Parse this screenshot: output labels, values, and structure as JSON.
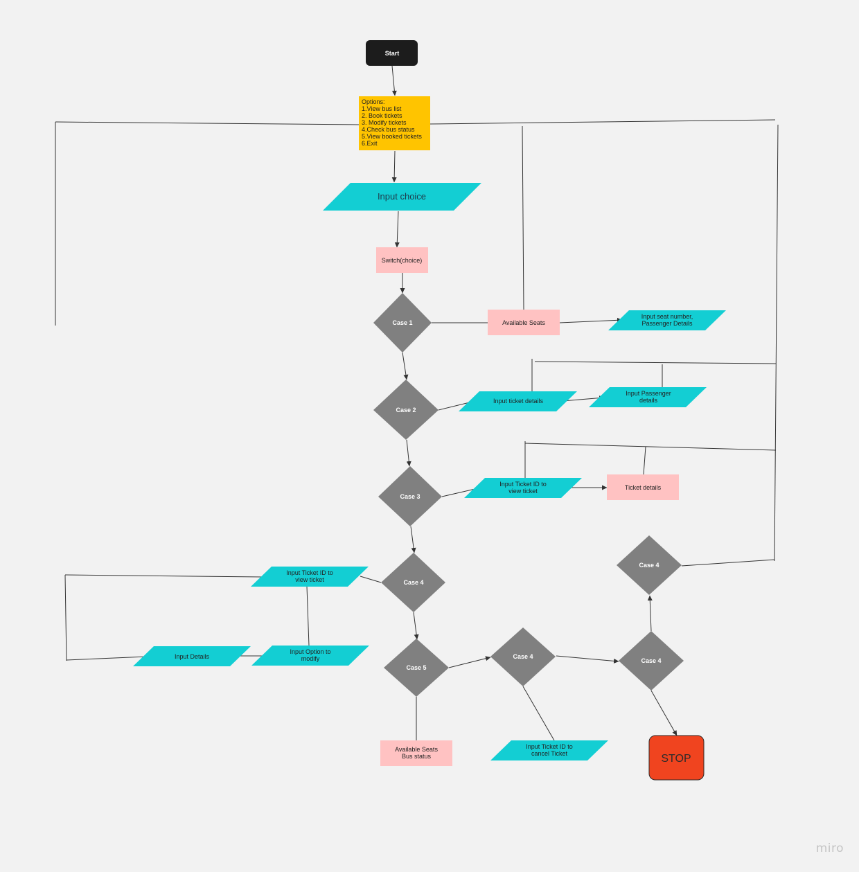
{
  "colors": {
    "background": "#f2f2f2",
    "terminal_start": "#1c1c1c",
    "options": "#ffc400",
    "io": "#13ced3",
    "process": "#ffc2c2",
    "decision": "#808080",
    "stop": "#f0441f"
  },
  "nodes": {
    "start": "Start",
    "options": [
      "Options:",
      "1.View bus list",
      "2. Book tickets",
      "3. Modify tickets",
      "4.Check bus status",
      "5.View booked tickets",
      "6.Exit"
    ],
    "input_choice": "Input choice",
    "switch": "Switch(choice)",
    "case1": "Case 1",
    "available_seats": "Available Seats",
    "input_seat": [
      "Input seat  number,",
      "Passenger Details"
    ],
    "case2": "Case 2",
    "input_ticket_details": "Input ticket details",
    "input_passenger": [
      "Input Passenger",
      "details"
    ],
    "case3": "Case 3",
    "input_ticket_id_view": [
      "Input Ticket ID to",
      "view ticket"
    ],
    "ticket_details": "Ticket details",
    "case4_main": "Case 4",
    "input_ticket_id_view_left": [
      "Input Ticket ID to",
      "view ticket"
    ],
    "input_details": "Input  Details",
    "input_option_modify": [
      "Input Option to",
      "modify"
    ],
    "case5": "Case 5",
    "available_seats_bus_status": [
      "Available Seats",
      "Bus status"
    ],
    "case4_b": "Case 4",
    "input_ticket_id_cancel": [
      "Input Ticket ID to",
      "cancel Ticket"
    ],
    "case4_c": "Case 4",
    "case4_d": "Case 4",
    "stop": "STOP"
  },
  "watermark": "miro"
}
